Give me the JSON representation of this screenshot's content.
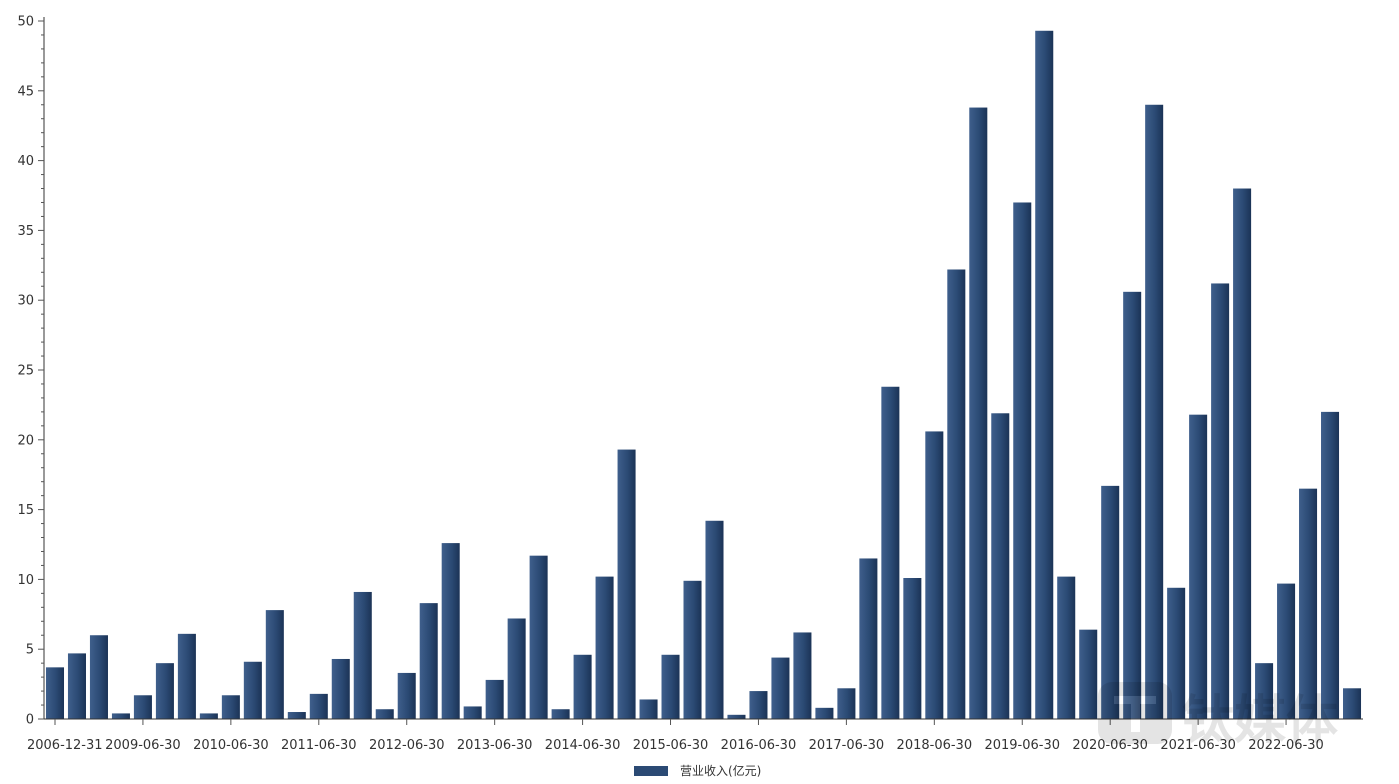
{
  "chart_data": {
    "type": "bar",
    "title": "",
    "xlabel": "",
    "ylabel": "",
    "ylim": [
      0,
      50
    ],
    "yticks": [
      0,
      5,
      10,
      15,
      20,
      25,
      30,
      35,
      40,
      45,
      50
    ],
    "x_tick_labels": [
      "2006-12-31",
      "2009-06-30",
      "2010-06-30",
      "2011-06-30",
      "2012-06-30",
      "2013-06-30",
      "2014-06-30",
      "2015-06-30",
      "2016-06-30",
      "2017-06-30",
      "2018-06-30",
      "2019-06-30",
      "2020-06-30",
      "2021-06-30",
      "2022-06-30"
    ],
    "x_tick_label_bar_index": [
      0,
      4,
      8,
      12,
      16,
      20,
      24,
      28,
      32,
      36,
      40,
      44,
      48,
      52,
      56
    ],
    "grid": false,
    "legend_position": "bottom-center",
    "series": [
      {
        "name": "营业收入(亿元)",
        "color": "#2b4a74",
        "values": [
          3.7,
          4.7,
          6.0,
          0.4,
          1.7,
          4.0,
          6.1,
          0.4,
          1.7,
          4.1,
          7.8,
          0.5,
          1.8,
          4.3,
          9.1,
          0.7,
          3.3,
          8.3,
          12.6,
          0.9,
          2.8,
          7.2,
          11.7,
          0.7,
          4.6,
          10.2,
          19.3,
          1.4,
          4.6,
          9.9,
          14.2,
          0.3,
          2.0,
          4.4,
          6.2,
          0.8,
          2.2,
          11.5,
          23.8,
          10.1,
          20.6,
          32.2,
          43.8,
          21.9,
          37.0,
          49.3,
          10.2,
          6.4,
          16.7,
          30.6,
          44.0,
          9.4,
          21.8,
          31.2,
          38.0,
          4.0,
          9.7,
          16.5,
          22.0,
          2.2
        ]
      }
    ]
  },
  "watermark": {
    "text": "钛媒体",
    "logo_icon": "tmt-logo-icon"
  }
}
